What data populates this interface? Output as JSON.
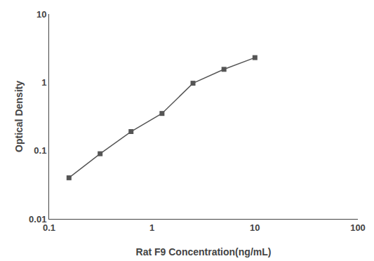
{
  "chart_data": {
    "type": "line",
    "xlabel": "Rat F9 Concentration(ng/mL)",
    "ylabel": "Optical Density",
    "x": [
      0.156,
      0.313,
      0.625,
      1.25,
      2.5,
      5.0,
      10.0
    ],
    "values": [
      0.04,
      0.09,
      0.19,
      0.35,
      0.97,
      1.55,
      2.3
    ],
    "color": "#555555",
    "marker": "square",
    "log": true,
    "xlim": [
      0.1,
      100
    ],
    "ylim": [
      0.01,
      10
    ],
    "xticks": [
      0.1,
      1,
      10,
      100
    ],
    "yticks": [
      0.01,
      0.1,
      1,
      10
    ],
    "grid": false
  }
}
